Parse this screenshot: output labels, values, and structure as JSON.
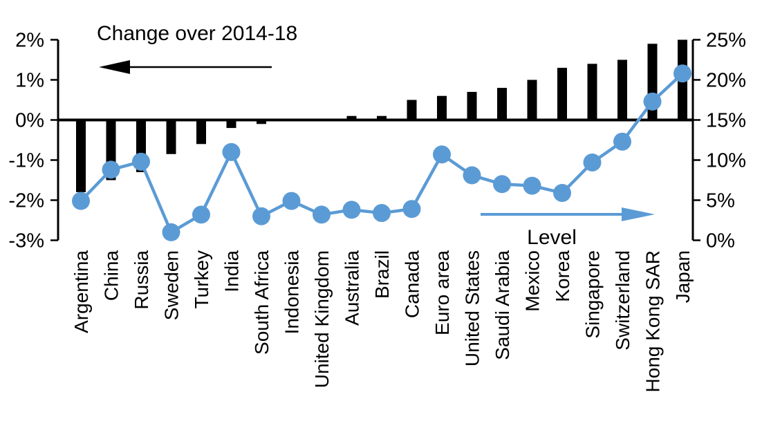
{
  "chart_data": {
    "type": "bar",
    "combo": "dual-axis column + line-with-markers",
    "title": "",
    "categories": [
      "Argentina",
      "China",
      "Russia",
      "Sweden",
      "Turkey",
      "India",
      "South Africa",
      "Indonesia",
      "United Kingdom",
      "Australia",
      "Brazil",
      "Canada",
      "Euro area",
      "United States",
      "Saudi Arabia",
      "Mexico",
      "Korea",
      "Singapore",
      "Switzerland",
      "Hong Kong SAR",
      "Japan"
    ],
    "series": [
      {
        "name": "Change over 2014-18",
        "type": "bar",
        "axis": "left",
        "color": "#000000",
        "values": [
          -1.8,
          -1.5,
          -1.3,
          -0.85,
          -0.6,
          -0.2,
          -0.1,
          0,
          0,
          0.1,
          0.1,
          0.5,
          0.6,
          0.7,
          0.8,
          1.0,
          1.3,
          1.4,
          1.5,
          1.9,
          2.0
        ]
      },
      {
        "name": "Level",
        "type": "line",
        "axis": "right",
        "color": "#5b9bd5",
        "values": [
          4.9,
          8.8,
          9.8,
          1.0,
          3.2,
          11.0,
          3.0,
          4.9,
          3.2,
          3.8,
          3.4,
          3.9,
          10.7,
          8.1,
          7.0,
          6.8,
          5.9,
          9.7,
          12.3,
          17.3,
          20.8
        ]
      }
    ],
    "left_axis": {
      "min": -3,
      "max": 2,
      "step": 1,
      "tick_labels": [
        "2%",
        "1%",
        "0%",
        "-1%",
        "-2%",
        "-3%"
      ],
      "unit": "%"
    },
    "right_axis": {
      "min": 0,
      "max": 25,
      "step": 5,
      "tick_labels": [
        "25%",
        "20%",
        "15%",
        "10%",
        "5%",
        "0%"
      ],
      "unit": "%"
    },
    "annotations": {
      "left_series_label": {
        "text": "Change over 2014-18",
        "arrow_direction": "left",
        "color": "#000000"
      },
      "right_series_label": {
        "text": "Level",
        "arrow_direction": "right",
        "color": "#5b9bd5"
      }
    },
    "grid": false,
    "legend_position": "in-plot annotations",
    "background": "#ffffff"
  }
}
